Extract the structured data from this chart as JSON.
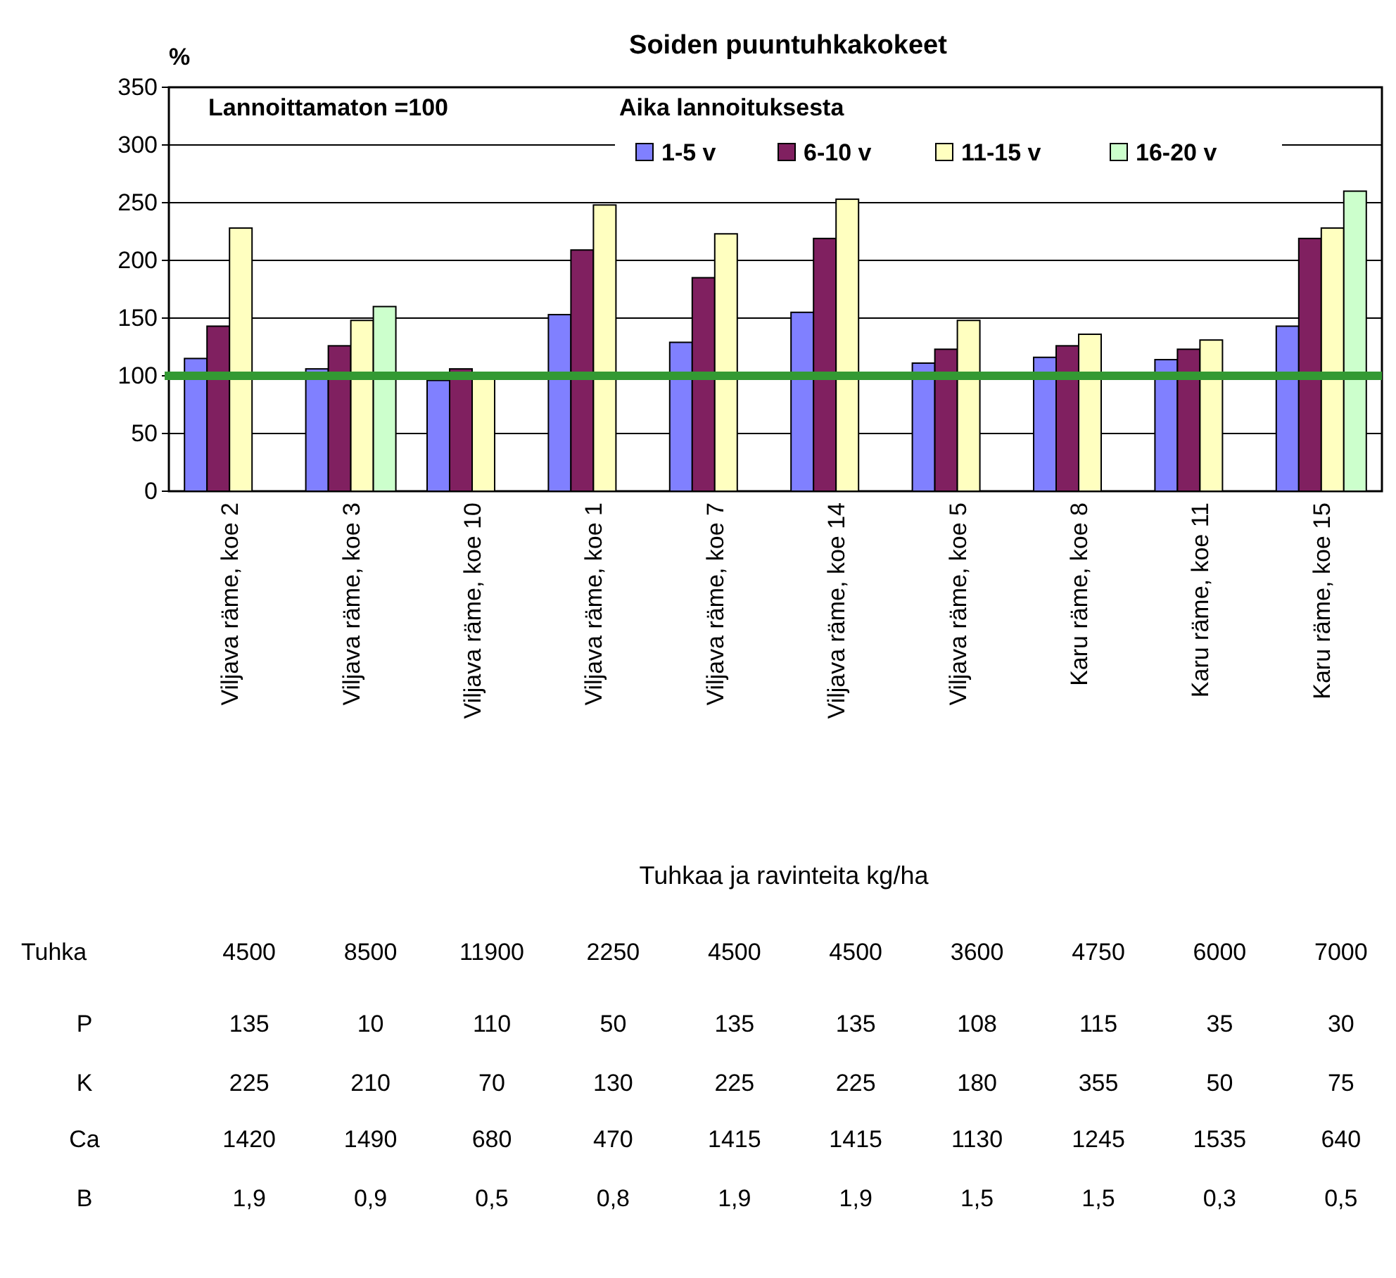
{
  "chart_data": {
    "type": "bar",
    "title": "Soiden puuntuhkakokeet",
    "ylabel": "%",
    "legend_title": "Aika lannoituksesta",
    "categories": [
      "Viljava räme, koe 2",
      "Viljava räme, koe 3",
      "Viljava räme, koe 10",
      "Viljava räme, koe 1",
      "Viljava räme, koe 7",
      "Viljava räme, koe 14",
      "Viljava räme, koe 5",
      "Karu räme, koe 8",
      "Karu räme, koe 11",
      "Karu räme, koe 15"
    ],
    "series": [
      {
        "name": "1-5 v",
        "color": "#8080ff",
        "values": [
          115,
          106,
          96,
          153,
          129,
          155,
          111,
          116,
          114,
          143
        ]
      },
      {
        "name": "6-10 v",
        "color": "#802060",
        "values": [
          143,
          126,
          106,
          209,
          185,
          219,
          123,
          126,
          123,
          219
        ]
      },
      {
        "name": "11-15 v",
        "color": "#ffffc0",
        "values": [
          228,
          148,
          100,
          248,
          223,
          253,
          148,
          136,
          131,
          228
        ]
      },
      {
        "name": "16-20 v",
        "color": "#ccffcc",
        "values": [
          null,
          160,
          null,
          null,
          null,
          null,
          null,
          null,
          null,
          260
        ]
      }
    ],
    "ylim": [
      0,
      350
    ],
    "yticks": [
      0,
      50,
      100,
      150,
      200,
      250,
      300,
      350
    ],
    "grid": "y",
    "legend": "top right",
    "ref_lines": [
      {
        "axis": "y",
        "value": 100,
        "color": "#339933"
      }
    ],
    "annotations": [
      "Lannoittamaton =100",
      "Tuhkaa ja ravinteita kg/ha",
      "Tuhka 4500 8500 11900 2250 4500 4500 3600 4750 6000 7000",
      "P 135 10 110 50 135 135 108 115 35 30",
      "K 225 210 70 130 225 225 180 355 50 75",
      "Ca 1420 1490 680 470 1415 1415 1130 1245 1535 640",
      "B 1,9 0,9 0,5 0,8 1,9 1,9 1,5 1,5 0,3 0,5"
    ]
  }
}
